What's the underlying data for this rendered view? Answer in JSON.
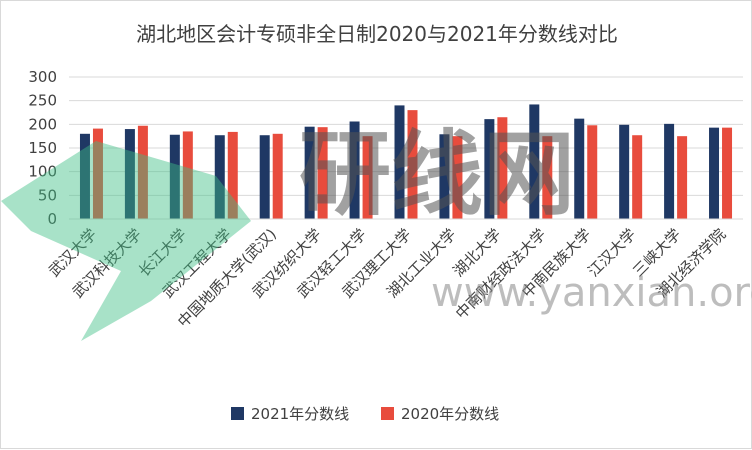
{
  "chart_data": {
    "type": "bar",
    "title": "湖北地区会计专硕非全日制2020与2021年分数线对比",
    "xlabel": "",
    "ylabel": "",
    "ylim": [
      0,
      300
    ],
    "yticks": [
      0,
      50,
      100,
      150,
      200,
      250,
      300
    ],
    "grid": true,
    "legend_position": "bottom",
    "categories": [
      "武汉大学",
      "武汉科技大学",
      "长江大学",
      "武汉工程大学",
      "中国地质大学(武汉)",
      "武汉纺织大学",
      "武汉轻工大学",
      "武汉理工大学",
      "湖北工业大学",
      "湖北大学",
      "中南财经政法大学",
      "中南民族大学",
      "江汉大学",
      "三峡大学",
      "湖北经济学院"
    ],
    "series": [
      {
        "name": "2021年分数线",
        "color": "#1f3864",
        "values": [
          180,
          190,
          178,
          177,
          177,
          195,
          206,
          240,
          179,
          211,
          242,
          212,
          199,
          201,
          193
        ]
      },
      {
        "name": "2020年分数线",
        "color": "#e84c3d",
        "values": [
          191,
          197,
          185,
          184,
          180,
          194,
          175,
          230,
          175,
          215,
          175,
          198,
          177,
          175,
          193
        ]
      }
    ]
  },
  "watermark": {
    "text": "研线网",
    "url": "www.yanxian.org",
    "logo_color": "#3dbf86"
  }
}
